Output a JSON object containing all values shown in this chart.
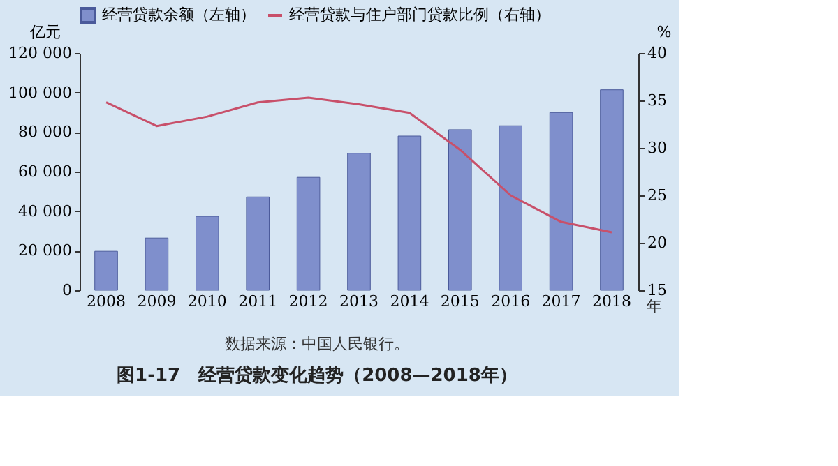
{
  "chart_data": {
    "type": "bar",
    "title": "图1-17　经营贷款变化趋势（2008—2018年）",
    "annotations": [
      "数据来源：中国人民银行。"
    ],
    "xlabel": "年",
    "ylabel": "亿元",
    "y2label": "%",
    "categories": [
      "2008",
      "2009",
      "2010",
      "2011",
      "2012",
      "2013",
      "2014",
      "2015",
      "2016",
      "2017",
      "2018"
    ],
    "series": [
      {
        "name": "经营贷款余额（左轴）",
        "color": "#7f8fcc",
        "values": [
          19700,
          26400,
          37400,
          47200,
          57100,
          69300,
          78000,
          81200,
          83200,
          89900,
          101400
        ]
      },
      {
        "name": "经营贷款与住户部门贷款比例（右轴）",
        "type": "line",
        "axis": "y2",
        "color": "#c8506a",
        "values": [
          34.8,
          32.3,
          33.3,
          34.8,
          35.3,
          34.6,
          33.7,
          29.8,
          25.0,
          22.2,
          21.1
        ]
      }
    ],
    "ylim": [
      0,
      120000
    ],
    "yticks": [
      0,
      {
        "value": 20000,
        "label": "20 000"
      },
      {
        "value": 40000,
        "label": "40 000"
      },
      {
        "value": 60000,
        "label": "60 000"
      },
      {
        "value": 80000,
        "label": "80 000"
      },
      {
        "value": 100000,
        "label": "100 000"
      },
      {
        "value": 120000,
        "label": "120 000"
      }
    ],
    "y2lim": [
      15,
      40
    ],
    "y2ticks": [
      15,
      20,
      25,
      30,
      35,
      40
    ],
    "legend": "top",
    "grid": false,
    "marker": "none",
    "line_style": "solid"
  }
}
